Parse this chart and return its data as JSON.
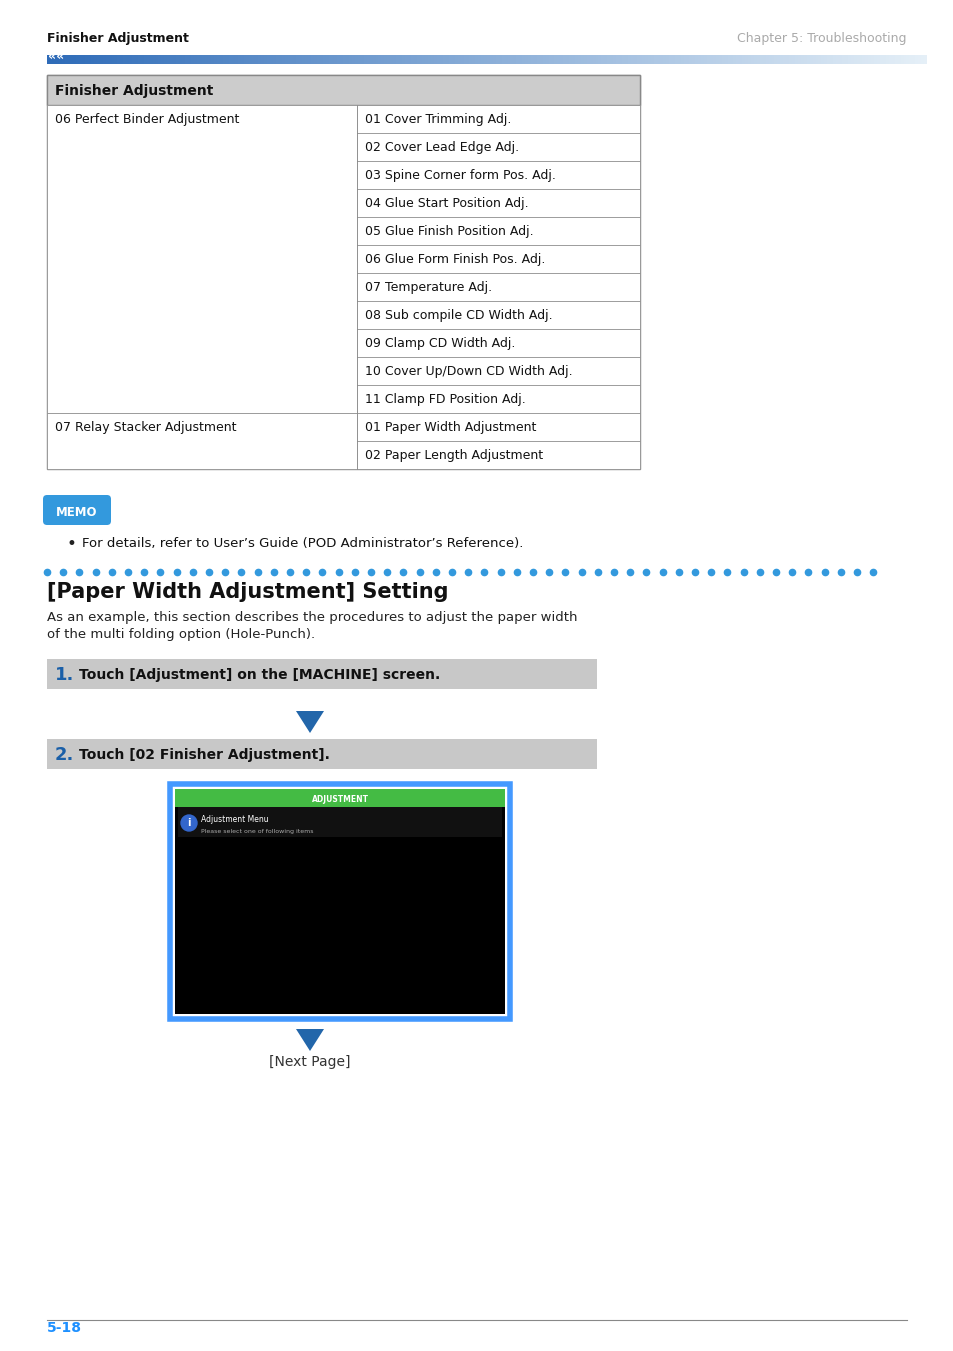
{
  "page_bg": "#ffffff",
  "header_left": "Finisher Adjustment",
  "header_right": "Chapter 5: Troubleshooting",
  "footer_page": "5-18",
  "footer_color": "#1e90ff",
  "table_header": "Finisher Adjustment",
  "table_col1_rows": [
    [
      "06 Perfect Binder Adjustment",
      11
    ],
    [
      "07 Relay Stacker Adjustment",
      2
    ]
  ],
  "table_col2_rows": [
    "01 Cover Trimming Adj.",
    "02 Cover Lead Edge Adj.",
    "03 Spine Corner form Pos. Adj.",
    "04 Glue Start Position Adj.",
    "05 Glue Finish Position Adj.",
    "06 Glue Form Finish Pos. Adj.",
    "07 Temperature Adj.",
    "08 Sub compile CD Width Adj.",
    "09 Clamp CD Width Adj.",
    "10 Cover Up/Down CD Width Adj.",
    "11 Clamp FD Position Adj.",
    "01 Paper Width Adjustment",
    "02 Paper Length Adjustment"
  ],
  "memo_bg": "#3399dd",
  "memo_text": "For details, refer to User’s Guide (POD Administrator’s Reference).",
  "dots_color": "#3399dd",
  "section_title": "[Paper Width Adjustment] Setting",
  "section_body_line1": "As an example, this section describes the procedures to adjust the paper width",
  "section_body_line2": "of the multi folding option (Hole-Punch).",
  "step1_num": "1.",
  "step1_text": "Touch [Adjustment] on the [MACHINE] screen.",
  "step2_num": "2.",
  "step2_text": "Touch [02 Finisher Adjustment].",
  "next_page_text": "[Next Page]",
  "step_bg": "#c8c8c8",
  "step_num_color": "#1a5fa8",
  "arrow_color": "#2266aa",
  "screen_green_bar": "#44bb44",
  "screen_border_blue": "#4499ff",
  "screen_border_dark": "#0000aa"
}
